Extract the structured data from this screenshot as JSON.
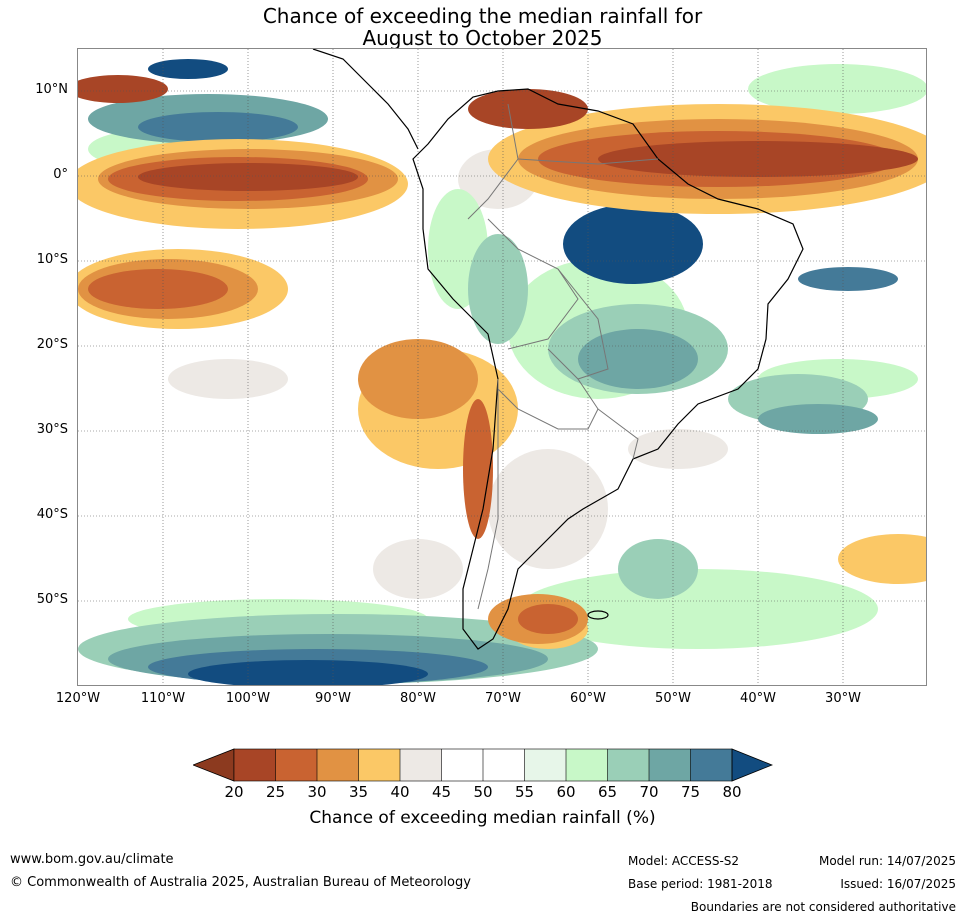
{
  "title": {
    "line1": "Chance of exceeding the median rainfall for",
    "line2": "August to October 2025"
  },
  "map": {
    "lat_labels": [
      "10°N",
      "0°",
      "10°S",
      "20°S",
      "30°S",
      "40°S",
      "50°S"
    ],
    "lon_labels": [
      "120°W",
      "110°W",
      "100°W",
      "90°W",
      "80°W",
      "70°W",
      "60°W",
      "50°W",
      "40°W",
      "30°W"
    ]
  },
  "colorbar": {
    "ticks": [
      "20",
      "25",
      "30",
      "35",
      "40",
      "45",
      "50",
      "55",
      "60",
      "65",
      "70",
      "75",
      "80"
    ],
    "label": "Chance of exceeding median rainfall (%)",
    "colors": {
      "below_20": "#8c3a1f",
      "20_25": "#a84526",
      "25_30": "#c96331",
      "30_35": "#e19243",
      "35_40": "#fbc866",
      "40_45": "#ede9e5",
      "45_50": "#ffffff",
      "50_55": "#ffffff",
      "55_60": "#e7f6e9",
      "60_65": "#c8f8c8",
      "65_70": "#9acfb7",
      "70_75": "#6ea6a4",
      "75_80": "#447a98",
      "above_80": "#124c80"
    }
  },
  "footer": {
    "url": "www.bom.gov.au/climate",
    "copyright": "© Commonwealth of Australia 2025, Australian Bureau of Meteorology",
    "model": "Model: ACCESS-S2",
    "base_period": "Base period: 1981-2018",
    "model_run": "Model run: 14/07/2025",
    "issued": "Issued: 16/07/2025",
    "boundaries": "Boundaries are not considered authoritative"
  }
}
